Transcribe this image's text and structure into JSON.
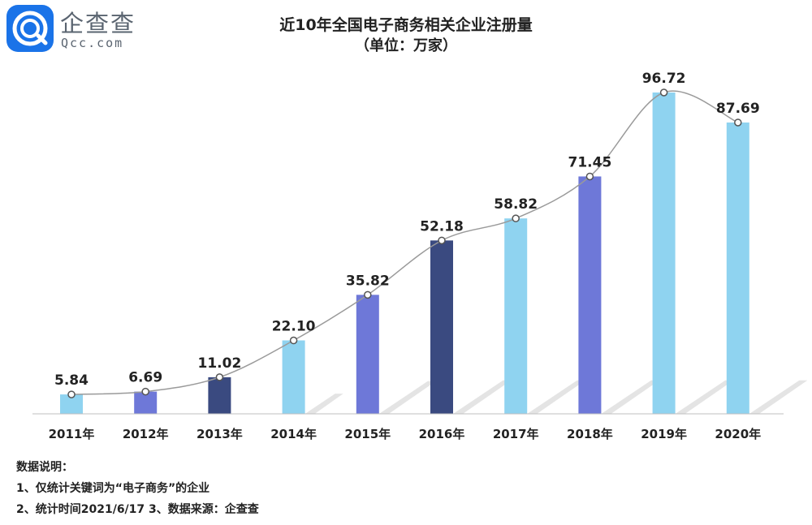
{
  "logo": {
    "name_cn": "企查查",
    "name_en": "Qcc.com"
  },
  "chart_data": {
    "type": "bar",
    "title": "近10年全国电子商务相关企业注册量",
    "subtitle": "（单位：万家）",
    "categories": [
      "2011年",
      "2012年",
      "2013年",
      "2014年",
      "2015年",
      "2016年",
      "2017年",
      "2018年",
      "2019年",
      "2020年"
    ],
    "values": [
      5.84,
      6.69,
      11.02,
      22.1,
      35.82,
      52.18,
      58.82,
      71.45,
      96.72,
      87.69
    ],
    "value_labels": [
      "5.84",
      "6.69",
      "11.02",
      "22.10",
      "35.82",
      "52.18",
      "58.82",
      "71.45",
      "96.72",
      "87.69"
    ],
    "bar_colors": [
      "#8fd3f0",
      "#6e78d8",
      "#3a4a80",
      "#8fd3f0",
      "#6e78d8",
      "#3a4a80",
      "#8fd3f0",
      "#6e78d8",
      "#8fd3f0",
      "#8fd3f0"
    ],
    "line_color": "#9a9a9a",
    "shadow_color": "#d9d9d9",
    "trend_line": true,
    "grid": false,
    "ylim": [
      0,
      100
    ]
  },
  "notes": {
    "heading": "数据说明：",
    "line1": "1、仅统计关键词为“电子商务”的企业",
    "line2": "2、统计时间2021/6/17   3、数据来源：企查查"
  }
}
